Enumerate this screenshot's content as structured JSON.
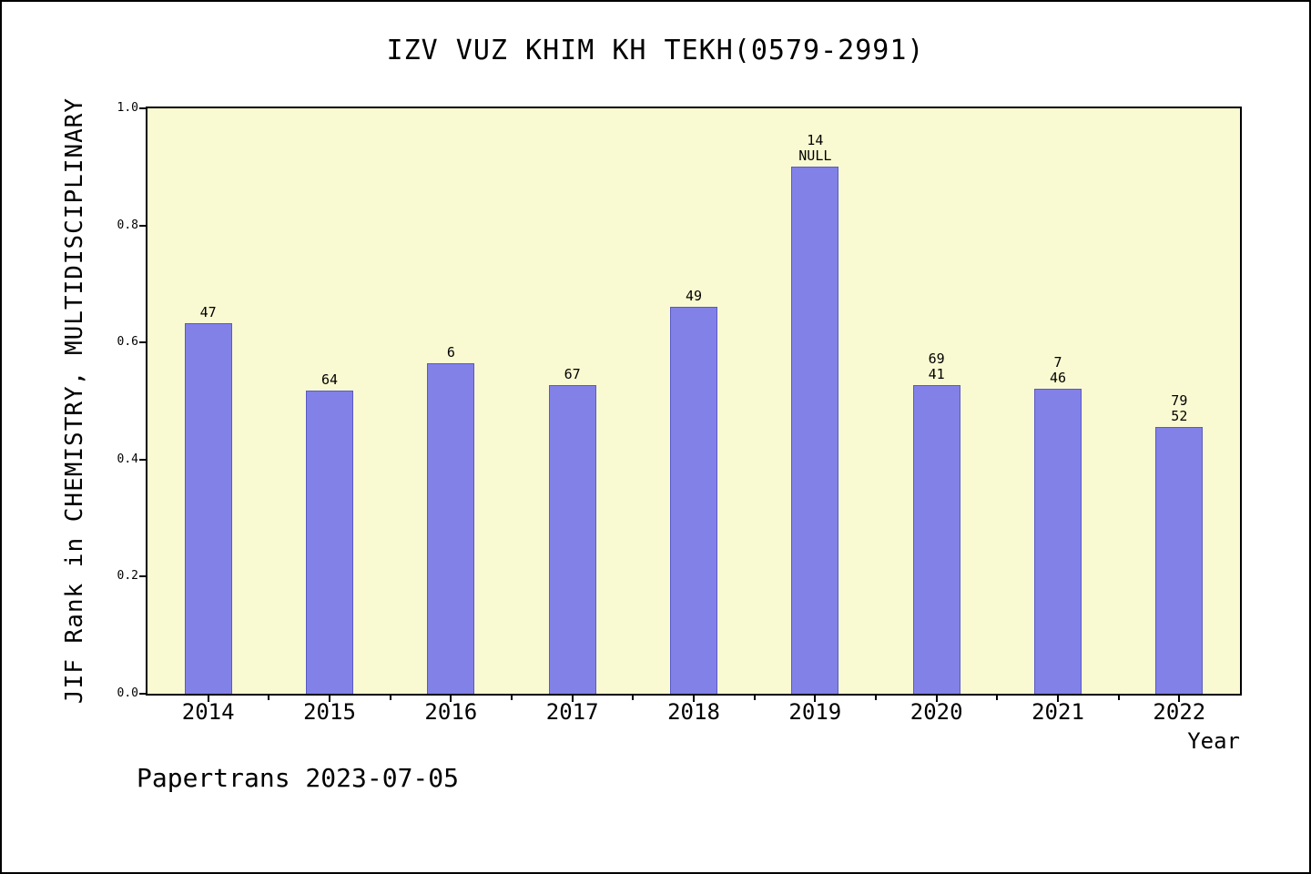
{
  "chart_data": {
    "type": "bar",
    "title": "IZV VUZ KHIM KH TEKH(0579-2991)",
    "xlabel": "Year",
    "ylabel": "JIF Rank in CHEMISTRY, MULTIDISCIPLINARY",
    "footer": "Papertrans 2023-07-05",
    "ylim": [
      0.0,
      1.0
    ],
    "ytick_values": [
      0.0,
      0.2,
      0.4,
      0.6,
      0.8,
      1.0
    ],
    "ytick_labels": [
      "0.0",
      "0.2",
      "0.4",
      "0.6",
      "0.8",
      "1.0"
    ],
    "categories": [
      "2014",
      "2015",
      "2016",
      "2017",
      "2018",
      "2019",
      "2020",
      "2021",
      "2022"
    ],
    "values": [
      0.633,
      0.518,
      0.565,
      0.527,
      0.661,
      0.9,
      0.527,
      0.521,
      0.455
    ],
    "bar_labels": [
      [
        "47"
      ],
      [
        "64"
      ],
      [
        "6"
      ],
      [
        "67"
      ],
      [
        "49"
      ],
      [
        "14",
        "NULL"
      ],
      [
        "69",
        "41"
      ],
      [
        "7",
        "46"
      ],
      [
        "79",
        "52"
      ]
    ],
    "legend": null,
    "grid": false,
    "bar_color": "#8181e8",
    "plot_bg_color": "#fafad2",
    "axis_color": "#000000"
  }
}
